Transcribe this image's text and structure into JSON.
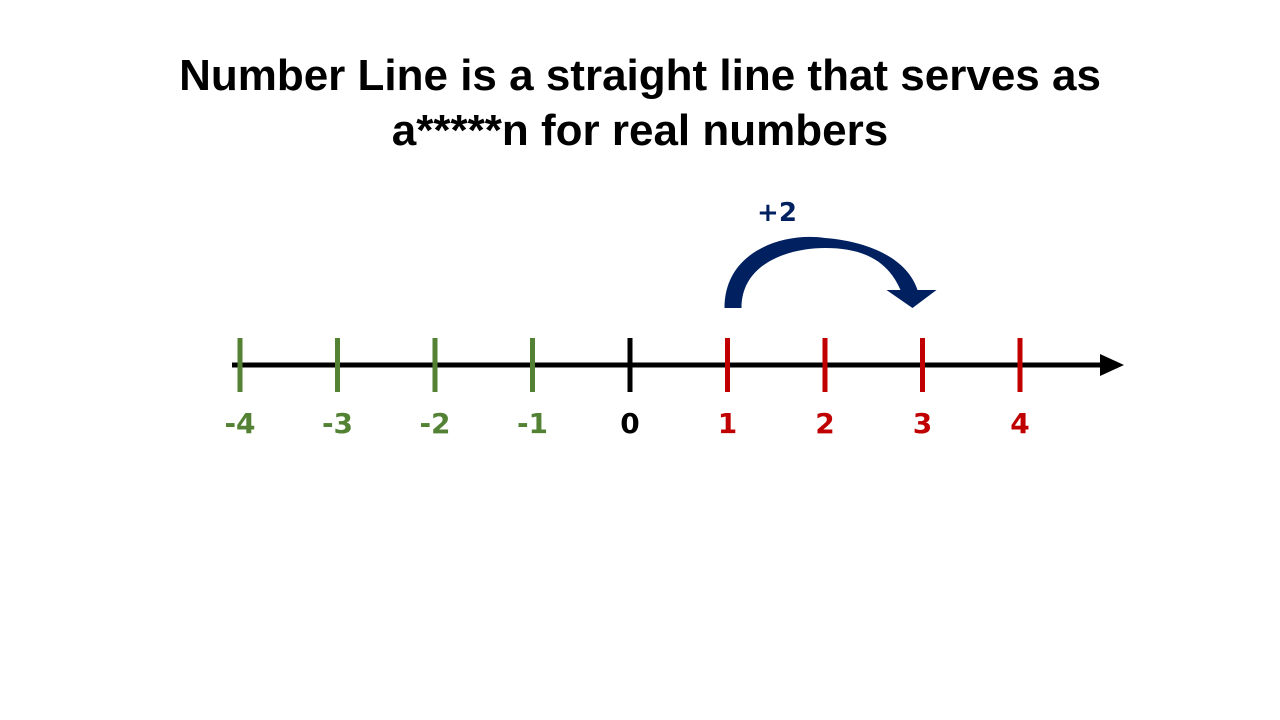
{
  "slide": {
    "title_line1": "Number Line is a straight line that serves as",
    "title_line2": "a*****n for real numbers"
  },
  "number_line": {
    "ticks": [
      {
        "label": "-4",
        "value": -4,
        "color": "#548235"
      },
      {
        "label": "-3",
        "value": -3,
        "color": "#548235"
      },
      {
        "label": "-2",
        "value": -2,
        "color": "#548235"
      },
      {
        "label": "-1",
        "value": -1,
        "color": "#548235"
      },
      {
        "label": "0",
        "value": 0,
        "color": "#000000"
      },
      {
        "label": "1",
        "value": 1,
        "color": "#c00000"
      },
      {
        "label": "2",
        "value": 2,
        "color": "#c00000"
      },
      {
        "label": "3",
        "value": 3,
        "color": "#c00000"
      },
      {
        "label": "4",
        "value": 4,
        "color": "#c00000"
      }
    ],
    "jump": {
      "label": "+2",
      "from": 1,
      "to": 3,
      "color": "#002060"
    },
    "axis_color": "#000000"
  }
}
